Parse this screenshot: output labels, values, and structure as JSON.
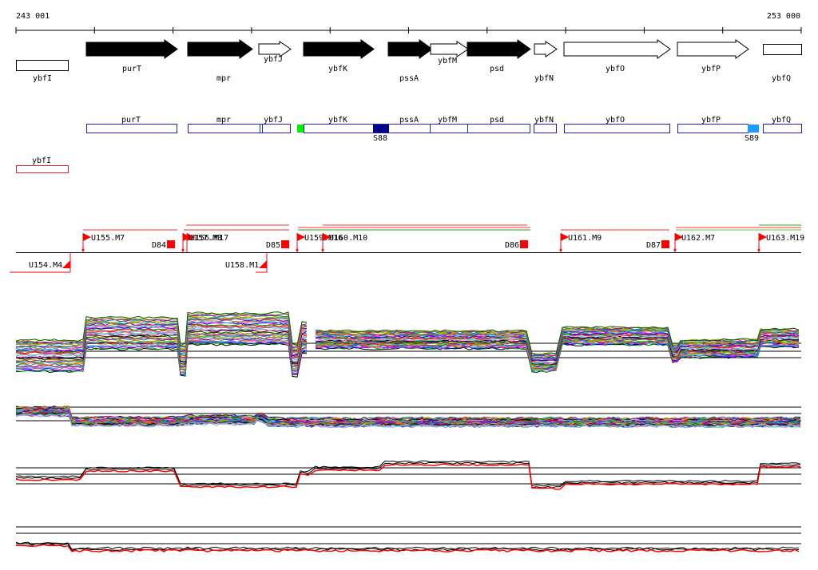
{
  "ruler": {
    "start_label": "243 001",
    "end_label": "253 000"
  },
  "genes": [
    {
      "name": "ybfI",
      "filled": false,
      "arrow": false
    },
    {
      "name": "purT",
      "filled": true,
      "arrow": true
    },
    {
      "name": "mpr",
      "filled": true,
      "arrow": true
    },
    {
      "name": "ybfJ",
      "filled": false,
      "arrow": true
    },
    {
      "name": "ybfK",
      "filled": true,
      "arrow": true
    },
    {
      "name": "pssA",
      "filled": true,
      "arrow": true
    },
    {
      "name": "ybfM",
      "filled": false,
      "arrow": true
    },
    {
      "name": "psd",
      "filled": true,
      "arrow": true
    },
    {
      "name": "ybfN",
      "filled": false,
      "arrow": true
    },
    {
      "name": "ybfO",
      "filled": false,
      "arrow": true
    },
    {
      "name": "ybfP",
      "filled": false,
      "arrow": true
    },
    {
      "name": "ybfQ",
      "filled": false,
      "arrow": false
    }
  ],
  "forward_transcripts": [
    {
      "name": "purT"
    },
    {
      "name": "mpr"
    },
    {
      "name": "ybfJ"
    },
    {
      "name": "ybfK"
    },
    {
      "name": "pssA"
    },
    {
      "name": "ybfM"
    },
    {
      "name": "psd"
    },
    {
      "name": "ybfN"
    },
    {
      "name": "ybfO"
    },
    {
      "name": "ybfP"
    },
    {
      "name": "ybfQ"
    }
  ],
  "reverse_transcripts": [
    {
      "name": "ybfI"
    }
  ],
  "sites": [
    {
      "name": "S88",
      "color": "#00008b"
    },
    {
      "name": "S89",
      "color": "#1e9bff"
    },
    {
      "name": "",
      "color": "#00ee00"
    }
  ],
  "forward_units": [
    {
      "label": "U155.M7"
    },
    {
      "label": "U156.M17"
    },
    {
      "label": "U157.M3"
    },
    {
      "label": "U159.M16"
    },
    {
      "label": "U160.M10"
    },
    {
      "label": "U161.M9"
    },
    {
      "label": "U162.M7"
    },
    {
      "label": "U163.M19"
    }
  ],
  "reverse_units": [
    {
      "label": "U154.M4"
    },
    {
      "label": "U158.M1"
    }
  ],
  "deletions": [
    {
      "label": "D84"
    },
    {
      "label": "D85"
    },
    {
      "label": "D86"
    },
    {
      "label": "D87"
    }
  ],
  "colors": {
    "gene_outline": "#2020c0",
    "reverse_outline": "#e02020",
    "unit": "#ff0000",
    "sense": "#ff0000",
    "antisense": "#000000"
  }
}
